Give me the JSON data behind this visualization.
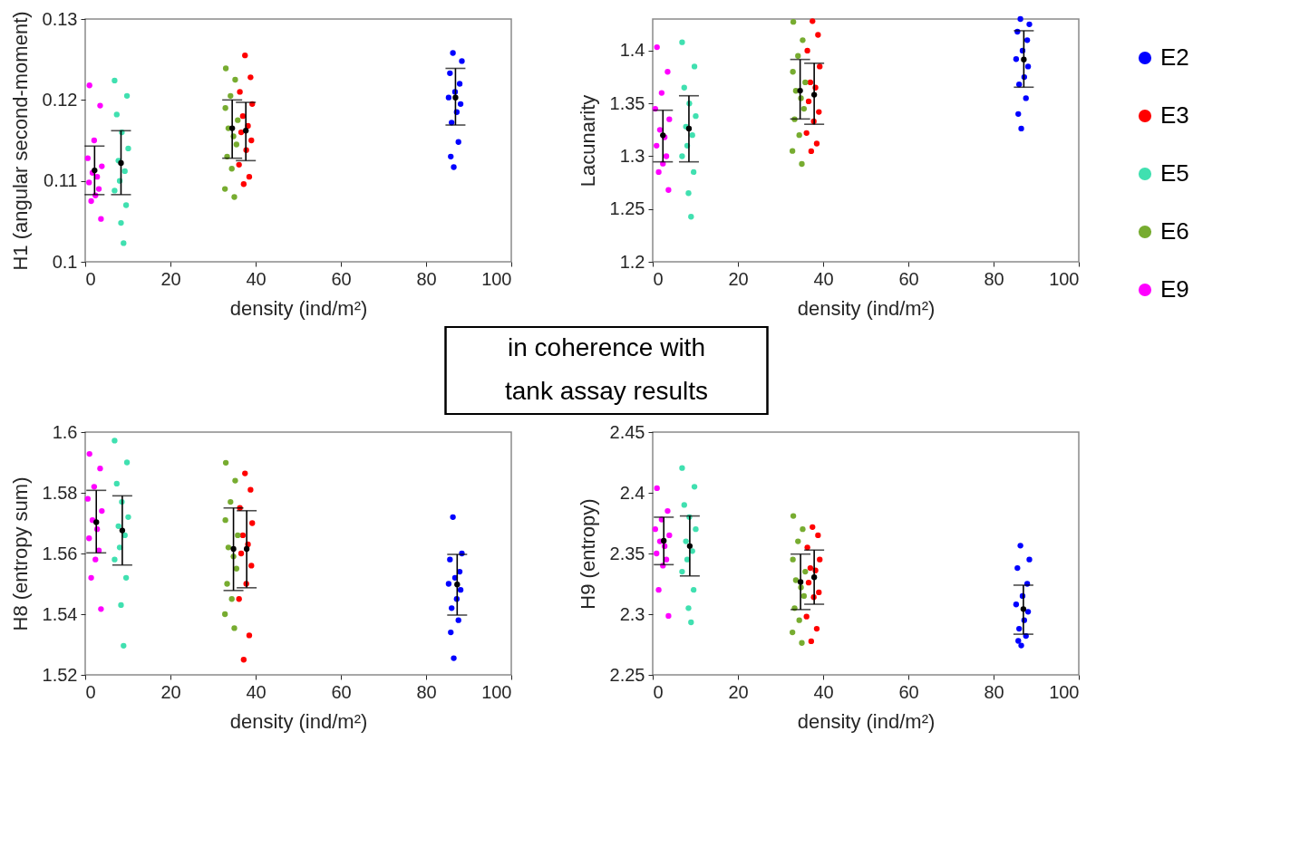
{
  "chart_data": [
    {
      "type": "scatter",
      "xlabel": "density (ind/m²)",
      "ylabel": "H1 (angular second-moment)",
      "xlim": [
        0,
        100
      ],
      "xticks": [
        0,
        20,
        40,
        60,
        80,
        100
      ],
      "ylim": [
        0.1,
        0.13
      ],
      "yticks": [
        0.1,
        0.11,
        0.12,
        0.13
      ],
      "grid": false,
      "marker": "circle",
      "series": [
        {
          "color": "#0000ff",
          "x": [
            86.3,
            88.4,
            85.6,
            87.9,
            86.8,
            85.3,
            88.1,
            87.2,
            86.0,
            87.6,
            85.8,
            86.5
          ],
          "values": [
            0.1258,
            0.1248,
            0.1233,
            0.122,
            0.121,
            0.1203,
            0.1195,
            0.1185,
            0.1172,
            0.1148,
            0.113,
            0.1117
          ]
        },
        {
          "color": "#ff0000",
          "x": [
            37.5,
            38.8,
            36.3,
            39.2,
            37.0,
            38.2,
            36.6,
            39.0,
            37.8,
            36.1,
            38.5,
            37.2
          ],
          "values": [
            0.1255,
            0.1228,
            0.121,
            0.1195,
            0.118,
            0.1168,
            0.116,
            0.115,
            0.1138,
            0.112,
            0.1105,
            0.1096
          ]
        },
        {
          "color": "#40e0b0",
          "x": [
            6.9,
            9.8,
            7.4,
            8.6,
            10.1,
            7.8,
            9.3,
            8.1,
            6.9,
            9.6,
            8.4,
            9.0
          ],
          "values": [
            0.1224,
            0.1205,
            0.1182,
            0.116,
            0.114,
            0.1125,
            0.1112,
            0.11,
            0.1088,
            0.107,
            0.1048,
            0.1023
          ]
        },
        {
          "color": "#77ac30",
          "x": [
            33.0,
            35.2,
            34.1,
            32.9,
            35.8,
            33.6,
            34.8,
            35.5,
            33.3,
            34.4,
            32.8,
            35.0
          ],
          "values": [
            0.1239,
            0.1225,
            0.1205,
            0.119,
            0.1175,
            0.1165,
            0.1155,
            0.1145,
            0.113,
            0.1115,
            0.109,
            0.108
          ]
        },
        {
          "color": "#ff00ff",
          "x": [
            1.0,
            3.5,
            2.1,
            0.6,
            3.9,
            1.7,
            2.8,
            0.9,
            3.2,
            2.4,
            1.4,
            3.7
          ],
          "values": [
            0.1218,
            0.1193,
            0.115,
            0.1128,
            0.1118,
            0.111,
            0.1105,
            0.1098,
            0.109,
            0.1082,
            0.1075,
            0.1053
          ]
        },
        {
          "color": "#000000",
          "x": [
            2.2,
            8.4,
            34.5,
            37.7,
            86.9
          ],
          "values": [
            0.1113,
            0.1122,
            0.1165,
            0.1162,
            0.1203
          ],
          "errors": [
            [
              0.1083,
              0.1143
            ],
            [
              0.1083,
              0.1162
            ],
            [
              0.1128,
              0.12
            ],
            [
              0.1125,
              0.1197
            ],
            [
              0.1169,
              0.1239
            ]
          ]
        }
      ]
    },
    {
      "type": "scatter",
      "xlabel": "density (ind/m²)",
      "ylabel": "Lacunarity",
      "xlim": [
        0,
        100
      ],
      "xticks": [
        0,
        20,
        40,
        60,
        80,
        100
      ],
      "ylim": [
        1.2,
        1.43
      ],
      "yticks": [
        1.2,
        1.25,
        1.3,
        1.35,
        1.4
      ],
      "grid": false,
      "legend": "right",
      "marker": "circle",
      "series": [
        {
          "name": "E2",
          "color": "#0000ff",
          "x": [
            86.3,
            88.4,
            85.6,
            87.9,
            86.8,
            85.3,
            88.1,
            87.2,
            86.0,
            87.6,
            85.8,
            86.5
          ],
          "values": [
            1.43,
            1.425,
            1.418,
            1.41,
            1.4,
            1.392,
            1.385,
            1.375,
            1.368,
            1.355,
            1.34,
            1.3262
          ]
        },
        {
          "name": "E3",
          "color": "#ff0000",
          "x": [
            37.5,
            38.8,
            36.3,
            39.2,
            37.0,
            38.2,
            36.6,
            39.0,
            37.8,
            36.1,
            38.5,
            37.2
          ],
          "values": [
            1.428,
            1.415,
            1.4,
            1.385,
            1.37,
            1.365,
            1.352,
            1.342,
            1.333,
            1.322,
            1.312,
            1.3048
          ]
        },
        {
          "name": "E5",
          "color": "#40e0b0",
          "x": [
            6.9,
            9.8,
            7.4,
            8.6,
            10.1,
            7.8,
            9.3,
            8.1,
            6.9,
            9.6,
            8.4,
            9.0
          ],
          "values": [
            1.408,
            1.385,
            1.365,
            1.35,
            1.338,
            1.328,
            1.32,
            1.31,
            1.3,
            1.285,
            1.265,
            1.2427
          ]
        },
        {
          "name": "E6",
          "color": "#77ac30",
          "x": [
            33.0,
            35.2,
            34.1,
            32.9,
            35.8,
            33.6,
            34.8,
            35.5,
            33.3,
            34.4,
            32.8,
            35.0
          ],
          "values": [
            1.4273,
            1.41,
            1.395,
            1.38,
            1.37,
            1.362,
            1.355,
            1.345,
            1.335,
            1.32,
            1.305,
            1.2927
          ]
        },
        {
          "name": "E9",
          "color": "#ff00ff",
          "x": [
            1.0,
            3.5,
            2.1,
            0.6,
            3.9,
            1.7,
            2.8,
            0.9,
            3.2,
            2.4,
            1.4,
            3.7
          ],
          "values": [
            1.4033,
            1.38,
            1.36,
            1.345,
            1.335,
            1.325,
            1.318,
            1.31,
            1.3,
            1.293,
            1.285,
            1.268
          ]
        },
        {
          "color": "#000000",
          "x": [
            2.4,
            8.5,
            34.6,
            37.9,
            87.1
          ],
          "values": [
            1.3199,
            1.3262,
            1.3621,
            1.3583,
            1.3917
          ],
          "errors": [
            [
              1.2947,
              1.3436
            ],
            [
              1.2947,
              1.3573
            ],
            [
              1.3353,
              1.3917
            ],
            [
              1.3303,
              1.3881
            ],
            [
              1.3654,
              1.4189
            ]
          ]
        }
      ]
    },
    {
      "type": "other",
      "annotations": [
        "in coherence with tank assay results"
      ]
    },
    {
      "type": "scatter",
      "xlabel": "density (ind/m²)",
      "ylabel": "H8 (entropy sum)",
      "xlim": [
        0,
        100
      ],
      "xticks": [
        0,
        20,
        40,
        60,
        80,
        100
      ],
      "ylim": [
        1.52,
        1.6
      ],
      "yticks": [
        1.52,
        1.54,
        1.56,
        1.58,
        1.6
      ],
      "grid": false,
      "marker": "circle",
      "series": [
        {
          "color": "#0000ff",
          "x": [
            86.3,
            88.4,
            85.6,
            87.9,
            86.8,
            85.3,
            88.1,
            87.2,
            86.0,
            87.6,
            85.8,
            86.5
          ],
          "values": [
            1.572,
            1.56,
            1.558,
            1.554,
            1.552,
            1.55,
            1.548,
            1.545,
            1.542,
            1.538,
            1.534,
            1.5255
          ]
        },
        {
          "color": "#ff0000",
          "x": [
            37.5,
            38.8,
            36.3,
            39.2,
            37.0,
            38.2,
            36.6,
            39.0,
            37.8,
            36.1,
            38.5,
            37.2
          ],
          "values": [
            1.5864,
            1.581,
            1.575,
            1.57,
            1.566,
            1.563,
            1.56,
            1.556,
            1.55,
            1.545,
            1.533,
            1.525
          ]
        },
        {
          "color": "#40e0b0",
          "x": [
            6.9,
            9.8,
            7.4,
            8.6,
            10.1,
            7.8,
            9.3,
            8.1,
            6.9,
            9.6,
            8.4,
            9.0
          ],
          "values": [
            1.5972,
            1.59,
            1.583,
            1.577,
            1.572,
            1.569,
            1.566,
            1.562,
            1.558,
            1.552,
            1.543,
            1.5296
          ]
        },
        {
          "color": "#77ac30",
          "x": [
            33.0,
            35.2,
            34.1,
            32.9,
            35.8,
            33.6,
            34.8,
            35.5,
            33.3,
            34.4,
            32.8,
            35.0
          ],
          "values": [
            1.5899,
            1.584,
            1.577,
            1.571,
            1.566,
            1.562,
            1.559,
            1.555,
            1.55,
            1.545,
            1.54,
            1.5354
          ]
        },
        {
          "color": "#ff00ff",
          "x": [
            1.0,
            3.5,
            2.1,
            0.6,
            3.9,
            1.7,
            2.8,
            0.9,
            3.2,
            2.4,
            1.4,
            3.7
          ],
          "values": [
            1.5928,
            1.588,
            1.582,
            1.578,
            1.574,
            1.571,
            1.568,
            1.565,
            1.561,
            1.558,
            1.552,
            1.5417
          ]
        },
        {
          "color": "#000000",
          "x": [
            2.6,
            8.7,
            34.8,
            37.9,
            87.3
          ],
          "values": [
            1.5703,
            1.5676,
            1.5615,
            1.5615,
            1.5498
          ],
          "errors": [
            [
              1.5602,
              1.5808
            ],
            [
              1.5562,
              1.579
            ],
            [
              1.5478,
              1.575
            ],
            [
              1.5487,
              1.5741
            ],
            [
              1.5397,
              1.5597
            ]
          ]
        }
      ]
    },
    {
      "type": "scatter",
      "xlabel": "density (ind/m²)",
      "ylabel": "H9 (entropy)",
      "xlim": [
        0,
        100
      ],
      "xticks": [
        0,
        20,
        40,
        60,
        80,
        100
      ],
      "ylim": [
        2.25,
        2.45
      ],
      "yticks": [
        2.25,
        2.3,
        2.35,
        2.4,
        2.45
      ],
      "grid": false,
      "marker": "circle",
      "series": [
        {
          "color": "#0000ff",
          "x": [
            86.3,
            88.4,
            85.6,
            87.9,
            86.8,
            85.3,
            88.1,
            87.2,
            86.0,
            87.6,
            85.8,
            86.5
          ],
          "values": [
            2.3565,
            2.345,
            2.338,
            2.325,
            2.315,
            2.308,
            2.302,
            2.295,
            2.288,
            2.282,
            2.278,
            2.2742
          ]
        },
        {
          "color": "#ff0000",
          "x": [
            37.5,
            38.8,
            36.3,
            39.2,
            37.0,
            38.2,
            36.6,
            39.0,
            37.8,
            36.1,
            38.5,
            37.2
          ],
          "values": [
            2.3718,
            2.365,
            2.355,
            2.345,
            2.338,
            2.336,
            2.326,
            2.318,
            2.314,
            2.298,
            2.288,
            2.2777
          ]
        },
        {
          "color": "#40e0b0",
          "x": [
            6.9,
            9.8,
            7.4,
            8.6,
            10.1,
            7.8,
            9.3,
            8.1,
            6.9,
            9.6,
            8.4,
            9.0
          ],
          "values": [
            2.4204,
            2.405,
            2.39,
            2.38,
            2.37,
            2.36,
            2.352,
            2.345,
            2.335,
            2.32,
            2.305,
            2.2933
          ]
        },
        {
          "color": "#77ac30",
          "x": [
            33.0,
            35.2,
            34.1,
            32.9,
            35.8,
            33.6,
            34.8,
            35.5,
            33.3,
            34.4,
            32.8,
            35.0
          ],
          "values": [
            2.3809,
            2.37,
            2.36,
            2.345,
            2.335,
            2.328,
            2.322,
            2.315,
            2.305,
            2.295,
            2.285,
            2.2763
          ]
        },
        {
          "color": "#ff00ff",
          "x": [
            1.0,
            3.5,
            2.1,
            0.6,
            3.9,
            1.7,
            2.8,
            0.9,
            3.2,
            2.4,
            1.4,
            3.7
          ],
          "values": [
            2.4038,
            2.385,
            2.378,
            2.37,
            2.365,
            2.36,
            2.356,
            2.35,
            2.345,
            2.34,
            2.32,
            2.2986
          ]
        },
        {
          "color": "#000000",
          "x": [
            2.6,
            8.7,
            34.7,
            37.9,
            87.0
          ],
          "values": [
            2.3605,
            2.3561,
            2.3265,
            2.3304,
            2.3042
          ],
          "errors": [
            [
              2.3408,
              2.3799
            ],
            [
              2.3315,
              2.3809
            ],
            [
              2.3038,
              2.3495
            ],
            [
              2.3082,
              2.3528
            ],
            [
              2.2835,
              2.3239
            ]
          ]
        }
      ]
    }
  ]
}
